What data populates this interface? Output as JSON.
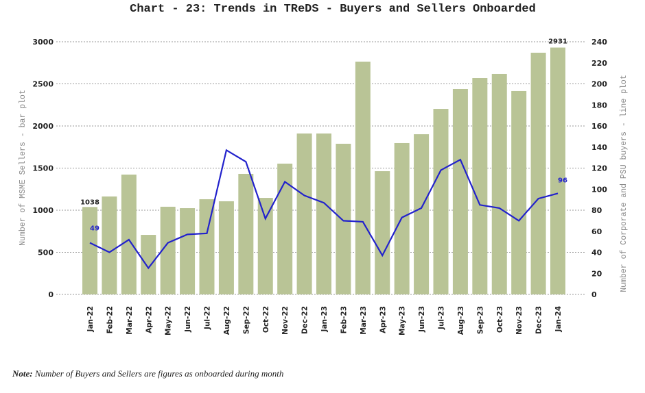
{
  "chart_data": {
    "type": "bar+line",
    "title": "Chart - 23: Trends in TReDS - Buyers and Sellers Onboarded",
    "categories": [
      "Jan-22",
      "Feb-22",
      "Mar-22",
      "Apr-22",
      "May-22",
      "Jun-22",
      "Jul-22",
      "Aug-22",
      "Sep-22",
      "Oct-22",
      "Nov-22",
      "Dec-22",
      "Jan-23",
      "Feb-23",
      "Mar-23",
      "Apr-23",
      "May-23",
      "Jun-23",
      "Jul-23",
      "Aug-23",
      "Sep-23",
      "Oct-23",
      "Nov-23",
      "Dec-23",
      "Jan-24"
    ],
    "bar_series": {
      "values": [
        1038,
        1163,
        1423,
        707,
        1041,
        1024,
        1130,
        1106,
        1431,
        1146,
        1553,
        1911,
        1911,
        1789,
        2764,
        1463,
        1797,
        1902,
        2203,
        2439,
        2569,
        2618,
        2415,
        2870,
        2931
      ],
      "color": "#b9c496",
      "axis": "left"
    },
    "line_series": {
      "values": [
        49,
        40,
        52,
        25,
        49,
        57,
        58,
        137,
        126,
        72,
        107,
        94,
        87,
        70,
        69,
        37,
        73,
        82,
        118,
        128,
        85,
        82,
        70,
        91,
        96
      ],
      "color": "#2222cc",
      "axis": "right"
    },
    "ylabel_left": "Number of MSME Sellers - bar plot",
    "ylabel_right": "Number of Corporate and PSU buyers - line plot",
    "ylim_left": [
      0,
      3000
    ],
    "yticks_left": [
      "0",
      "500",
      "1000",
      "1500",
      "2000",
      "2500",
      "3000"
    ],
    "ylim_right": [
      0,
      240
    ],
    "yticks_right": [
      "0",
      "20",
      "40",
      "60",
      "80",
      "100",
      "120",
      "140",
      "160",
      "180",
      "200",
      "220",
      "240"
    ],
    "data_labels": {
      "bar_first": "1038",
      "bar_last": "2931",
      "line_first": "49",
      "line_last": "96"
    },
    "grid": "horizontal dotted",
    "legend": "none"
  },
  "note": {
    "label": "Note:",
    "text": " Number of Buyers and Sellers are figures as onboarded during month"
  }
}
